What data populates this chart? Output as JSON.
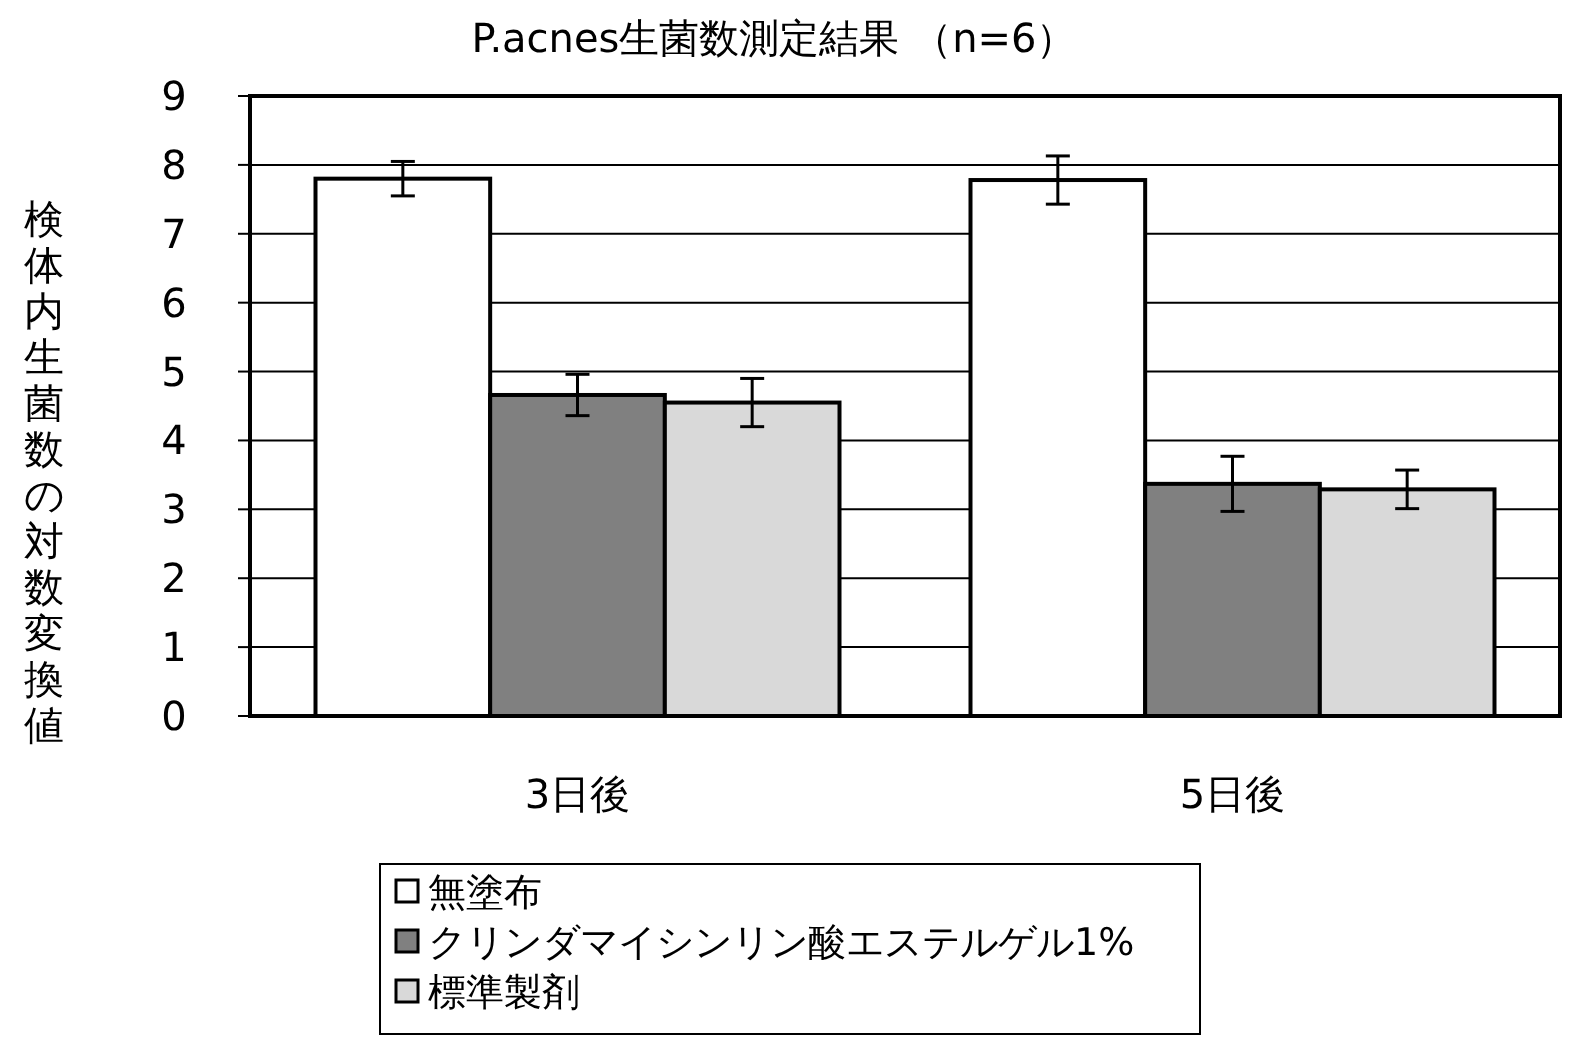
{
  "chart_data": {
    "type": "bar",
    "title": "P.acnes生菌数測定結果 （n=6）",
    "ylabel": "検体内生菌数の対数変換値",
    "categories": [
      "3日後",
      "5日後"
    ],
    "series": [
      {
        "name": "無塗布",
        "color": "#ffffff",
        "values": [
          7.8,
          7.78
        ],
        "errors": [
          0.25,
          0.35
        ]
      },
      {
        "name": "クリンダマイシンリン酸エステルゲル1%",
        "color": "#808080",
        "values": [
          4.66,
          3.37
        ],
        "errors": [
          0.3,
          0.4
        ]
      },
      {
        "name": "標準製剤",
        "color": "#d9d9d9",
        "values": [
          4.55,
          3.29
        ],
        "errors": [
          0.35,
          0.28
        ]
      }
    ],
    "ylim": [
      0,
      9
    ],
    "yticks": [
      0,
      1,
      2,
      3,
      4,
      5,
      6,
      7,
      8,
      9
    ],
    "grid": "y",
    "legend": "bottom"
  }
}
